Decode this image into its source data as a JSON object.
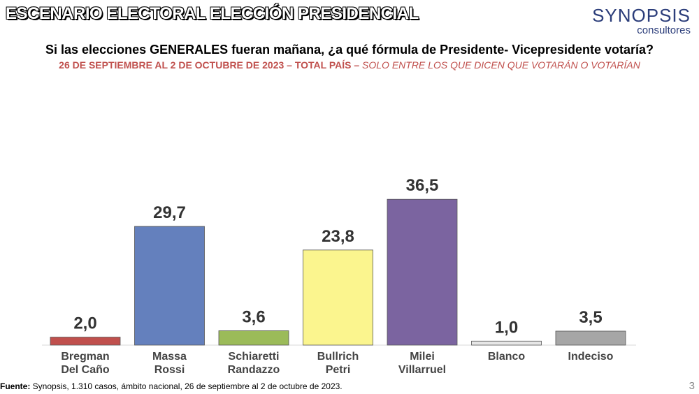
{
  "header": {
    "title": "ESCENARIO ELECTORAL ELECCIÓN PRESIDENCIAL"
  },
  "logo": {
    "main": "SYNOPSIS",
    "sub": "consultores"
  },
  "question": "Si las elecciones GENERALES fueran mañana, ¿a qué fórmula de Presidente- Vicepresidente votaría?",
  "subtitle": {
    "main": "26 DE SEPTIEMBRE AL 2 DE OCTUBRE DE 2023 – TOTAL PAÍS –",
    "italic": "SOLO ENTRE LOS QUE DICEN QUE VOTARÁN O VOTARÍAN"
  },
  "chart_data": {
    "type": "bar",
    "categories": [
      [
        "Bregman",
        "Del Caño"
      ],
      [
        "Massa",
        "Rossi"
      ],
      [
        "Schiaretti",
        "Randazzo"
      ],
      [
        "Bullrich",
        "Petri"
      ],
      [
        "Milei",
        "Villarruel"
      ],
      [
        "Blanco"
      ],
      [
        "Indeciso"
      ]
    ],
    "values": [
      2.0,
      29.7,
      3.6,
      23.8,
      36.5,
      1.0,
      3.5
    ],
    "value_labels": [
      "2,0",
      "29,7",
      "3,6",
      "23,8",
      "36,5",
      "1,0",
      "3,5"
    ],
    "colors": [
      "#c0504d",
      "#6480bd",
      "#9bbb59",
      "#fbf58e",
      "#7b64a0",
      "#e6e6e6",
      "#a6a6a6"
    ],
    "ylim": [
      0,
      40
    ],
    "grid": false,
    "legend": "none"
  },
  "footer": {
    "source_label": "Fuente:",
    "source_text": " Synopsis, 1.310 casos, ámbito nacional, 26 de septiembre al 2 de octubre de 2023.",
    "page_number": "3"
  }
}
